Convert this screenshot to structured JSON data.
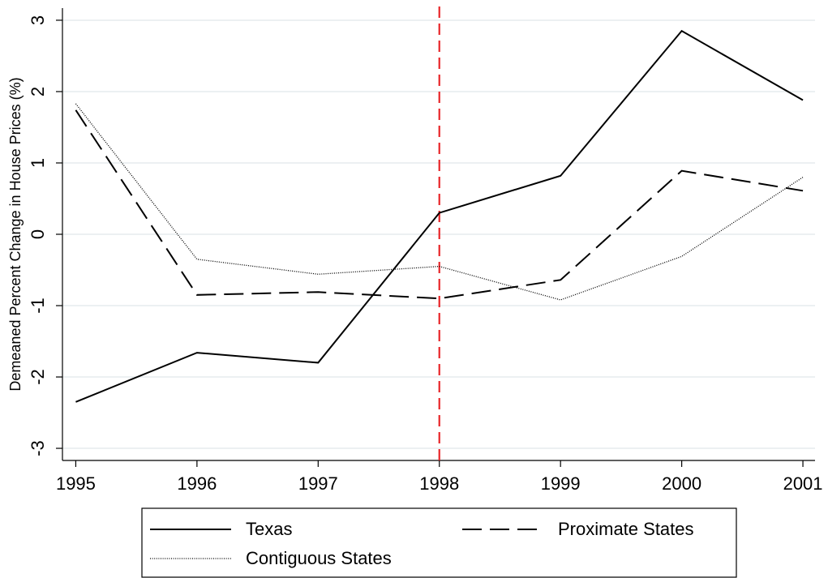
{
  "chart_data": {
    "type": "line",
    "y_label": "Demeaned Percent Change in House Prices (%)",
    "x": [
      1995,
      1996,
      1997,
      1998,
      1999,
      2000,
      2001
    ],
    "series": [
      {
        "name": "Texas",
        "color": "#000000",
        "dash": "solid",
        "values": [
          -2.35,
          -1.66,
          -1.8,
          0.3,
          0.82,
          2.85,
          1.88
        ]
      },
      {
        "name": "Proximate States",
        "color": "#000000",
        "dash": "long-dash",
        "values": [
          1.74,
          -0.85,
          -0.81,
          -0.9,
          -0.64,
          0.89,
          0.61
        ]
      },
      {
        "name": "Contiguous States",
        "color": "#000000",
        "dash": "dotted",
        "values": [
          1.83,
          -0.35,
          -0.56,
          -0.45,
          -0.92,
          -0.31,
          0.8
        ]
      }
    ],
    "xlim": [
      1994.89,
      2001.1
    ],
    "xticks": [
      1995,
      1996,
      1997,
      1998,
      1999,
      2000,
      2001
    ],
    "ylim": [
      -3.17,
      3.17
    ],
    "yticks": [
      -3,
      -2,
      -1,
      0,
      1,
      2,
      3
    ],
    "grid": true,
    "vline": 1998,
    "vline_color": "#e8262a",
    "legend": "bottom"
  }
}
